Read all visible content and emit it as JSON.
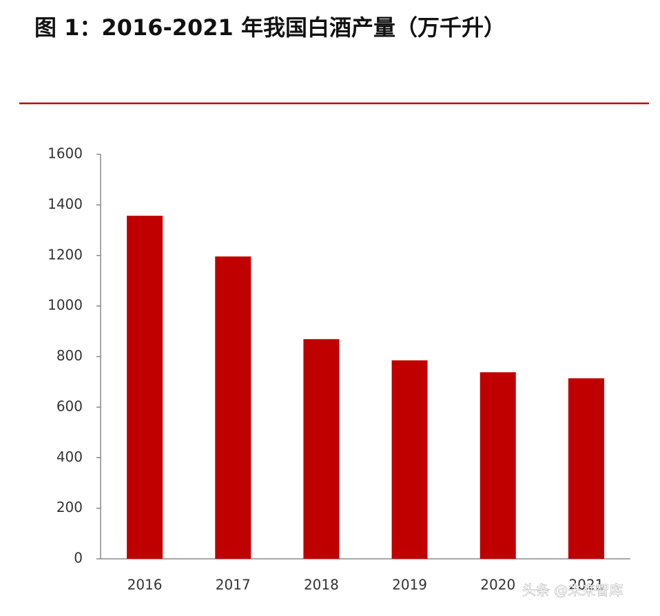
{
  "chart_data": {
    "type": "bar",
    "title": "图 1：2016-2021 年我国白酒产量（万千升）",
    "categories": [
      "2016",
      "2017",
      "2018",
      "2019",
      "2020",
      "2021"
    ],
    "values": [
      1357,
      1196,
      869,
      785,
      738,
      714
    ],
    "color": "#c00000",
    "ylim": [
      0,
      1600
    ],
    "yticks": [
      0,
      200,
      400,
      600,
      800,
      1000,
      1200,
      1400,
      1600
    ],
    "grid": false,
    "watermark": "头条 @未来智库"
  }
}
